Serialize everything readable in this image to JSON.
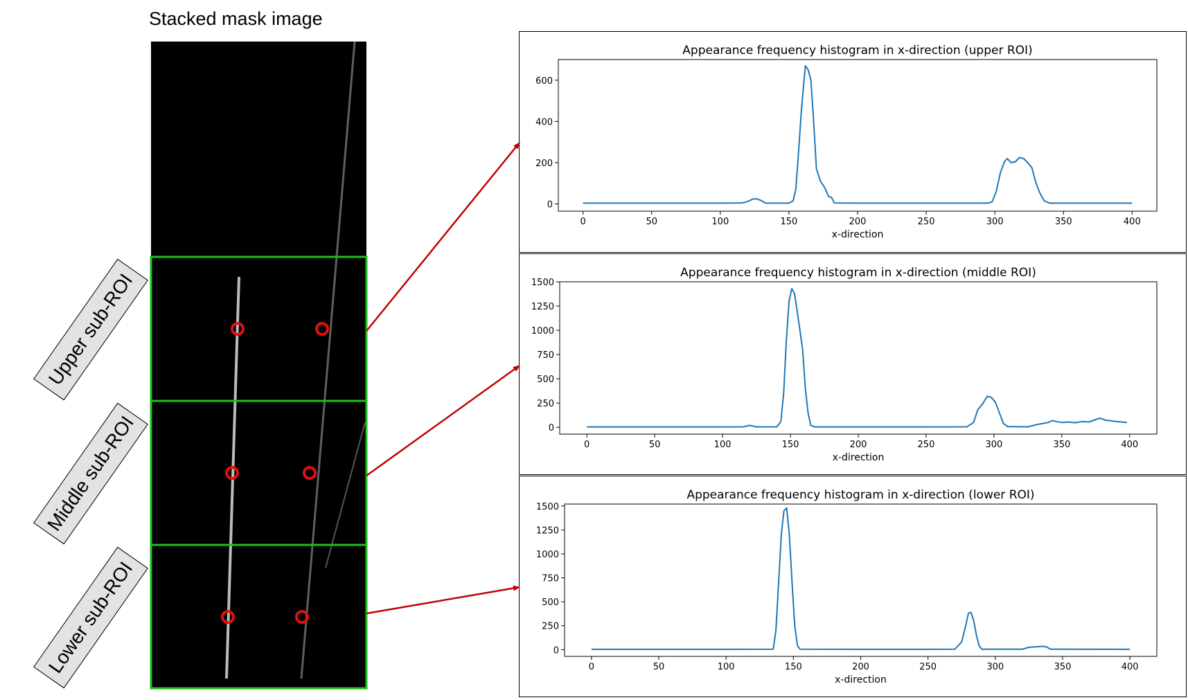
{
  "figure": {
    "title": "Stacked mask image",
    "roi_labels": [
      "Upper sub-ROI",
      "Middle sub-ROI",
      "Lower sub-ROI"
    ],
    "colors": {
      "roi_box": "#19c219",
      "marker": "#e01010",
      "arrow": "#c00000",
      "line": "#1f77b4",
      "mask_bg": "#000000"
    }
  },
  "chart_data": [
    {
      "type": "line",
      "title": "Appearance frequency histogram in x-direction (upper ROI)",
      "xlabel": "x-direction",
      "ylabel": "",
      "xlim": [
        -18,
        418
      ],
      "ylim": [
        -35,
        700
      ],
      "xticks": [
        0,
        50,
        100,
        150,
        200,
        250,
        300,
        350,
        400
      ],
      "yticks": [
        0,
        200,
        400,
        600
      ],
      "ytick_labels": [
        "0",
        "200",
        "400",
        "600"
      ],
      "series": [
        {
          "x": [
            0,
            100,
            115,
            118,
            121,
            124,
            127,
            130,
            133,
            150,
            153,
            155,
            157,
            159,
            161,
            162,
            164,
            166,
            168,
            170,
            173,
            176,
            179,
            181,
            183,
            200,
            250,
            295,
            298,
            301,
            304,
            307,
            309,
            312,
            315,
            318,
            321,
            324,
            327,
            330,
            333,
            336,
            340,
            400
          ],
          "y": [
            4,
            4,
            5,
            8,
            15,
            25,
            24,
            16,
            4,
            4,
            15,
            70,
            250,
            450,
            600,
            670,
            650,
            600,
            400,
            170,
            110,
            80,
            35,
            32,
            5,
            4,
            4,
            4,
            10,
            60,
            150,
            205,
            220,
            200,
            205,
            225,
            220,
            200,
            175,
            100,
            50,
            15,
            4,
            4
          ]
        }
      ]
    },
    {
      "type": "line",
      "title": "Appearance frequency histogram in x-direction (middle ROI)",
      "xlabel": "x-direction",
      "ylabel": "",
      "xlim": [
        -20,
        420
      ],
      "ylim": [
        -70,
        1500
      ],
      "xticks": [
        0,
        50,
        100,
        150,
        200,
        250,
        300,
        350,
        400
      ],
      "yticks": [
        0,
        250,
        500,
        750,
        1000,
        1250,
        1500
      ],
      "ytick_labels": [
        "0",
        "250",
        "500",
        "750",
        "1000",
        "1250",
        "1500"
      ],
      "series": [
        {
          "x": [
            0,
            100,
            115,
            120,
            125,
            140,
            143,
            145,
            147,
            149,
            151,
            153,
            155,
            157,
            159,
            161,
            163,
            165,
            168,
            200,
            250,
            280,
            285,
            288,
            292,
            295,
            298,
            301,
            304,
            307,
            310,
            325,
            332,
            336,
            340,
            343,
            346,
            350,
            355,
            360,
            365,
            370,
            375,
            378,
            382,
            390,
            398
          ],
          "y": [
            4,
            4,
            5,
            20,
            5,
            5,
            60,
            350,
            900,
            1300,
            1430,
            1380,
            1200,
            1000,
            800,
            400,
            150,
            20,
            4,
            4,
            4,
            5,
            50,
            180,
            250,
            320,
            310,
            260,
            150,
            40,
            8,
            5,
            30,
            40,
            50,
            70,
            60,
            50,
            55,
            48,
            60,
            55,
            80,
            95,
            75,
            60,
            50
          ]
        }
      ]
    },
    {
      "type": "line",
      "title": "Appearance frequency histogram in x-direction (lower ROI)",
      "xlabel": "x-direction",
      "ylabel": "",
      "xlim": [
        -20,
        420
      ],
      "ylim": [
        -70,
        1520
      ],
      "xticks": [
        0,
        50,
        100,
        150,
        200,
        250,
        300,
        350,
        400
      ],
      "yticks": [
        0,
        250,
        500,
        750,
        1000,
        1250,
        1500
      ],
      "ytick_labels": [
        "0",
        "250",
        "500",
        "750",
        "1000",
        "1250",
        "1500"
      ],
      "series": [
        {
          "x": [
            0,
            100,
            135,
            137,
            139,
            141,
            143,
            145,
            147,
            149,
            151,
            153,
            155,
            200,
            250,
            270,
            275,
            278,
            280,
            282,
            284,
            286,
            288,
            290,
            320,
            325,
            330,
            335,
            338,
            341,
            400
          ],
          "y": [
            4,
            4,
            5,
            200,
            700,
            1200,
            1450,
            1480,
            1200,
            700,
            250,
            40,
            5,
            4,
            4,
            5,
            80,
            250,
            380,
            390,
            300,
            150,
            40,
            5,
            5,
            25,
            30,
            35,
            30,
            5,
            4
          ]
        }
      ]
    }
  ]
}
